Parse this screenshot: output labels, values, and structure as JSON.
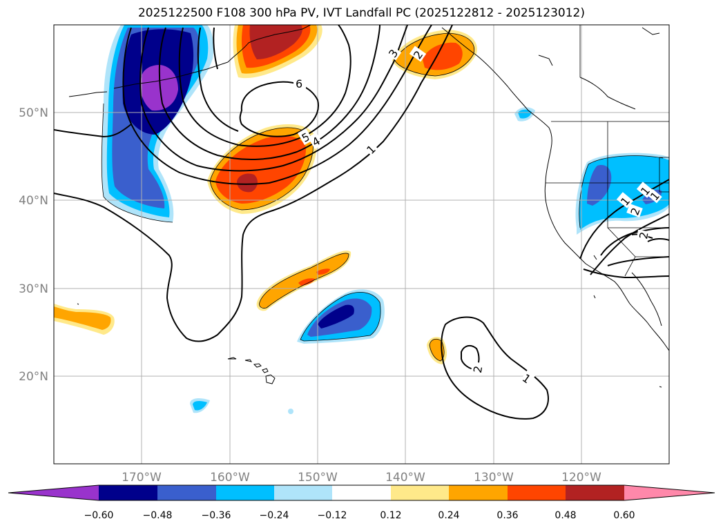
{
  "title": "2025122500 F108 300 hPa PV, IVT Landfall PC (2025122812 - 2025123012)",
  "lat_labels": [
    "50°N",
    "40°N",
    "30°N",
    "20°N"
  ],
  "lon_labels": [
    "170°W",
    "160°W",
    "150°W",
    "140°W",
    "130°W",
    "120°W"
  ],
  "colorbar": {
    "colors": [
      "#9933cc",
      "#00008b",
      "#3a5fcd",
      "#00bfff",
      "#afe4fa",
      "#ffffff",
      "#ffe98a",
      "#ffa500",
      "#ff4500",
      "#b22222",
      "#ff88aa"
    ],
    "ticks": [
      "−0.60",
      "−0.48",
      "−0.36",
      "−0.24",
      "−0.12",
      "0.12",
      "0.24",
      "0.36",
      "0.48",
      "0.60"
    ]
  },
  "contour_labels": [
    "6",
    "5",
    "4",
    "3",
    "2",
    "1",
    "1",
    "2",
    "1",
    "1",
    "2",
    "1",
    "2"
  ]
}
